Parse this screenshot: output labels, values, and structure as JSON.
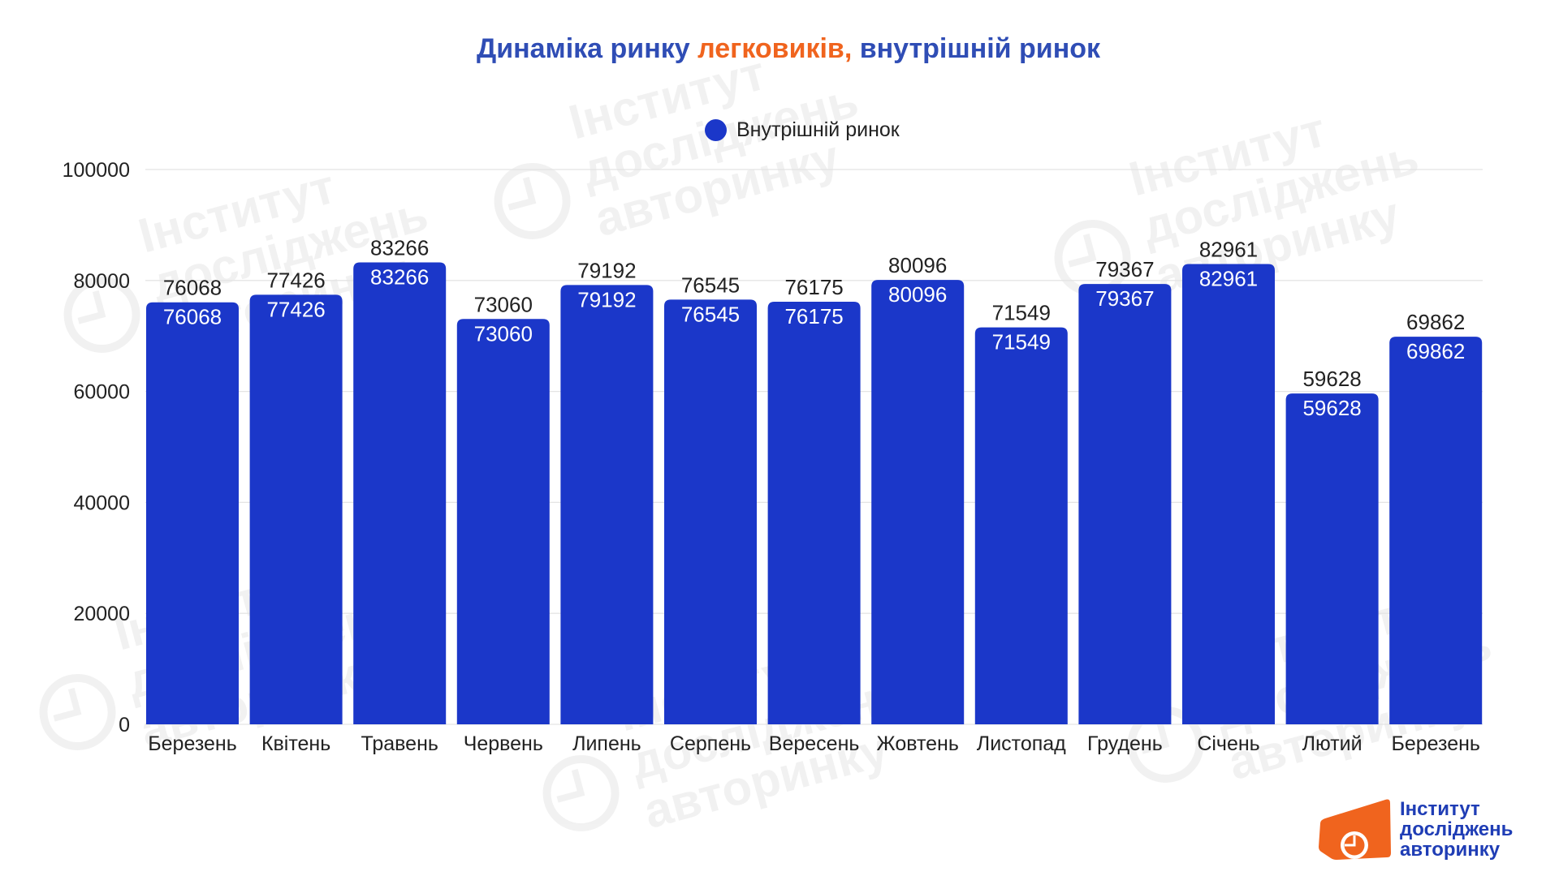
{
  "chart_data": {
    "type": "bar",
    "title": "Динаміка ринку легковиків, внутрішній ринок",
    "title_emphasis": "легковиків,",
    "categories": [
      "Березень",
      "Квітень",
      "Травень",
      "Червень",
      "Липень",
      "Серпень",
      "Вересень",
      "Жовтень",
      "Листопад",
      "Грудень",
      "Січень",
      "Лютий",
      "Березень"
    ],
    "series": [
      {
        "name": "Внутрішній ринок",
        "values": [
          76068,
          77426,
          83266,
          73060,
          79192,
          76545,
          76175,
          80096,
          71549,
          79367,
          82961,
          59628,
          69862
        ]
      }
    ],
    "ylim": [
      0,
      100000
    ],
    "yticks": [
      0,
      20000,
      40000,
      60000,
      80000,
      100000
    ],
    "grid": true,
    "legend": "top-center",
    "data_labels": "above-and-inside-bar"
  },
  "colors": {
    "background": "#ffffff",
    "bar": "#1b37c9",
    "title": "#2f4db5",
    "title_emphasis": "#f0641e",
    "gridline": "#e4e4e4",
    "axis_text": "#222222",
    "label_inside": "#ffffff",
    "logo_orange": "#f0641e",
    "logo_text": "#1f3db5",
    "watermark": "#000000"
  },
  "logo": {
    "lines": [
      "Інститут",
      "досліджень",
      "авторинку"
    ]
  },
  "watermark": {
    "lines": [
      "Інститут",
      "досліджень",
      "авторинку"
    ]
  }
}
